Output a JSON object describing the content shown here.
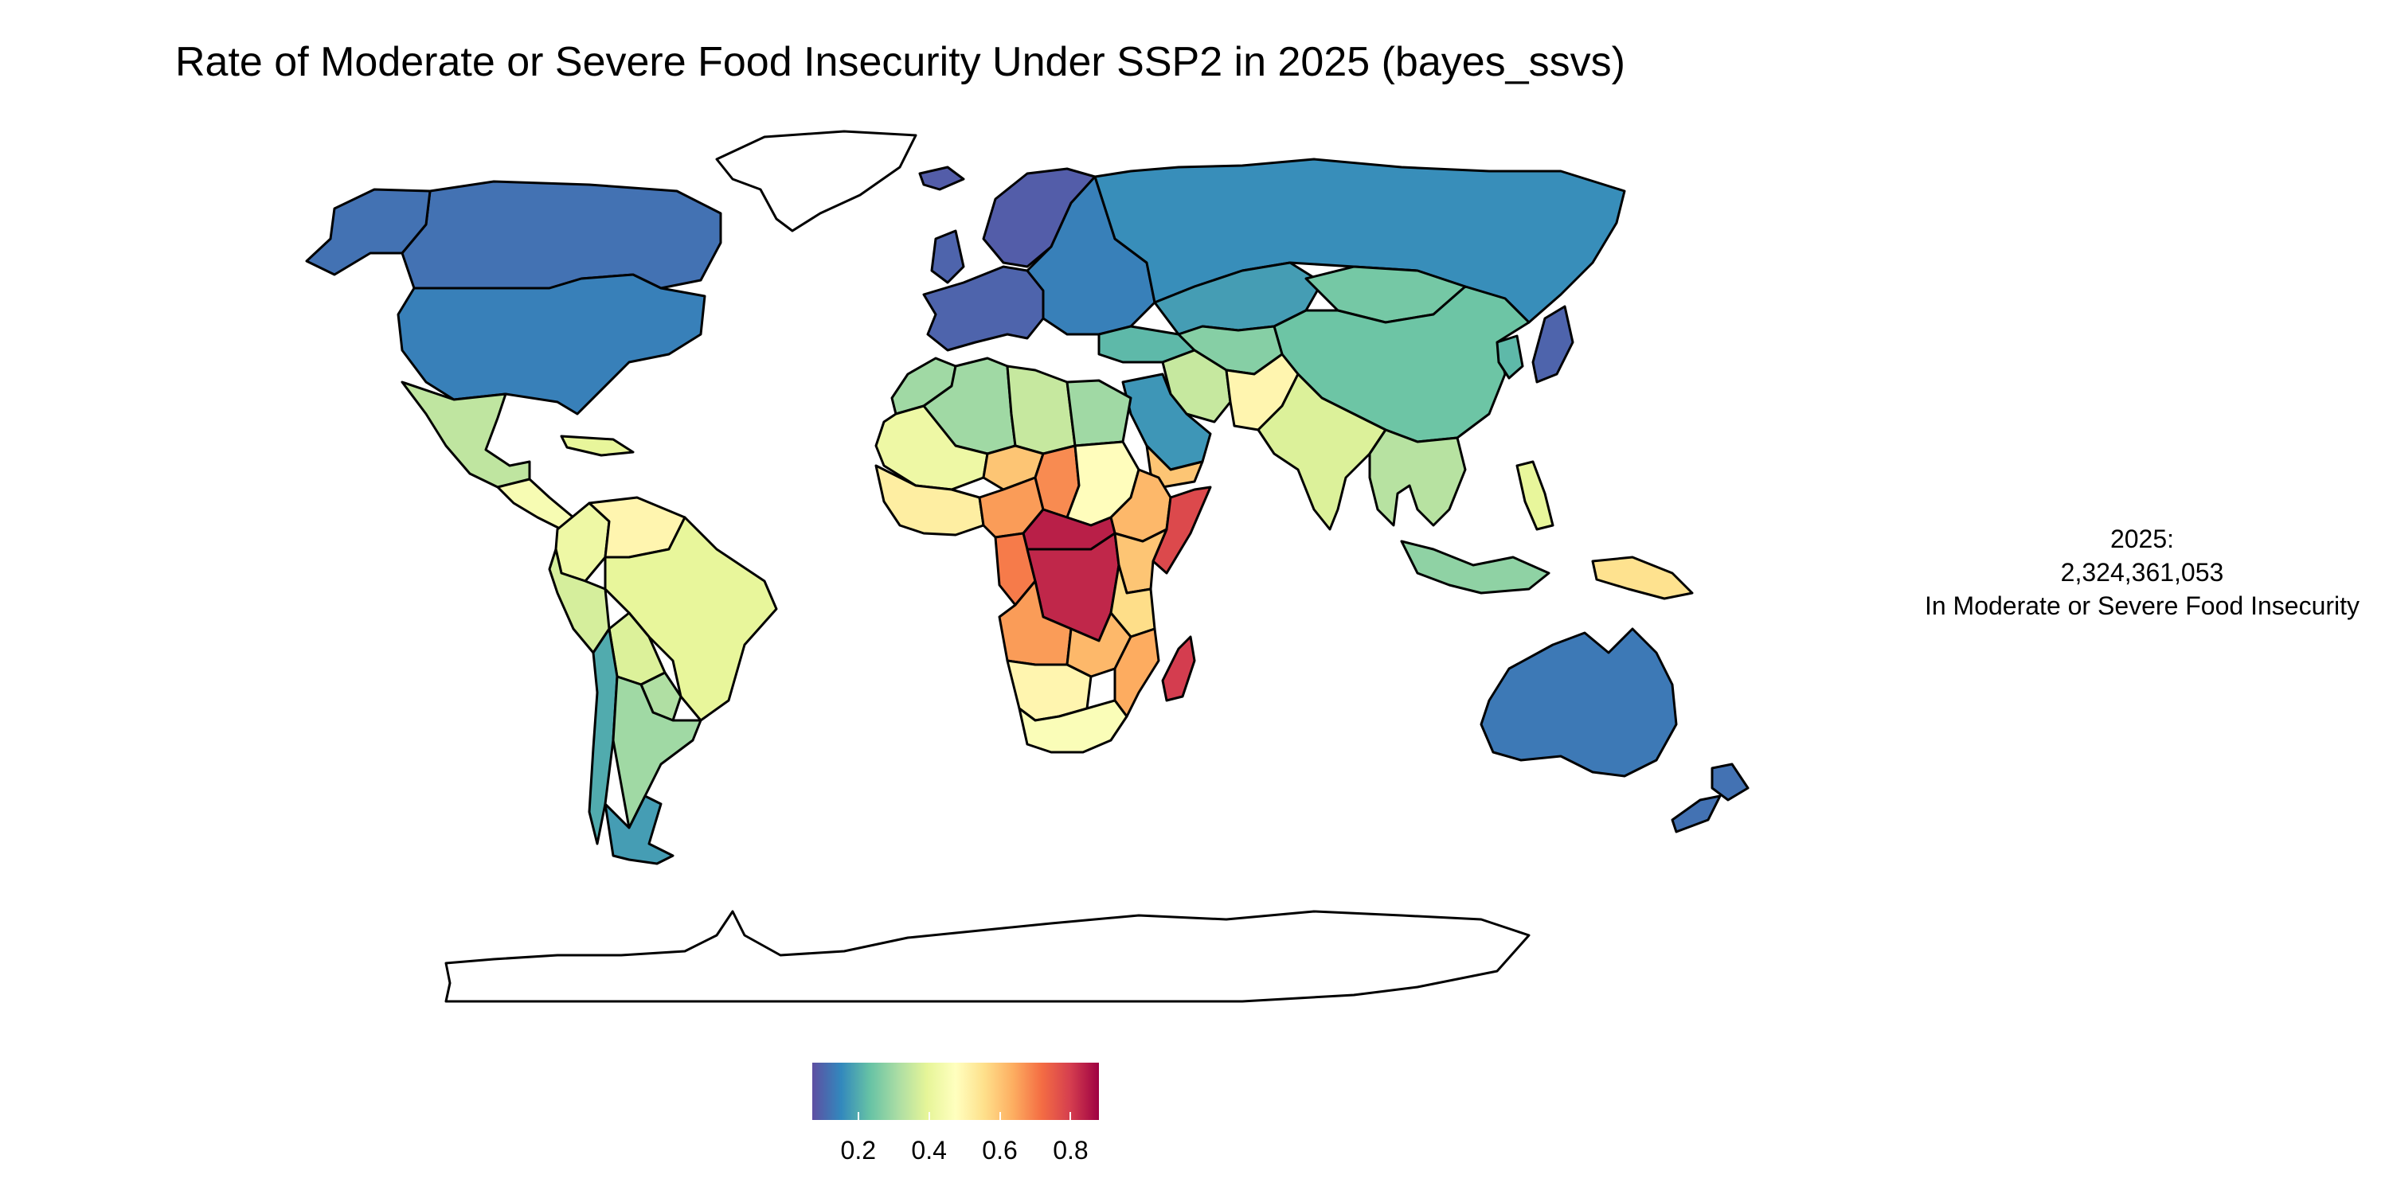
{
  "title": "Rate of Moderate or Severe Food Insecurity Under SSP2 in 2025 (bayes_ssvs)",
  "annotation": {
    "line1": "2025:",
    "line2": "2,324,361,053",
    "line3": "In Moderate or Severe Food Insecurity"
  },
  "legend": {
    "colors": [
      "#5e4fa2",
      "#3288bd",
      "#66c2a5",
      "#abdda4",
      "#e6f598",
      "#ffffbf",
      "#fee08b",
      "#fdae61",
      "#f46d43",
      "#d53e4f",
      "#9e0142"
    ],
    "range": [
      0.07,
      0.88
    ],
    "ticks": [
      {
        "value": 0.2,
        "label": "0.2"
      },
      {
        "value": 0.4,
        "label": "0.4"
      },
      {
        "value": 0.6,
        "label": "0.6"
      },
      {
        "value": 0.8,
        "label": "0.8"
      }
    ]
  },
  "regions": [
    {
      "name": "Canada",
      "rate": 0.12
    },
    {
      "name": "Greenland",
      "rate": null
    },
    {
      "name": "Alaska",
      "rate": 0.12
    },
    {
      "name": "United States",
      "rate": 0.14
    },
    {
      "name": "Mexico",
      "rate": 0.34
    },
    {
      "name": "Central America",
      "rate": 0.45
    },
    {
      "name": "Caribbean",
      "rate": 0.4
    },
    {
      "name": "Venezuela",
      "rate": 0.5
    },
    {
      "name": "Colombia",
      "rate": 0.42
    },
    {
      "name": "Brazil",
      "rate": 0.4
    },
    {
      "name": "Peru",
      "rate": 0.37
    },
    {
      "name": "Bolivia",
      "rate": 0.38
    },
    {
      "name": "Paraguay",
      "rate": 0.32
    },
    {
      "name": "Argentina",
      "rate": 0.3
    },
    {
      "name": "Chile",
      "rate": 0.2
    },
    {
      "name": "Patagonia",
      "rate": 0.18
    },
    {
      "name": "Western Europe",
      "rate": 0.1
    },
    {
      "name": "Scandinavia",
      "rate": 0.09
    },
    {
      "name": "Iceland",
      "rate": 0.09
    },
    {
      "name": "United Kingdom",
      "rate": 0.1
    },
    {
      "name": "Eastern Europe",
      "rate": 0.14
    },
    {
      "name": "Russia",
      "rate": 0.16
    },
    {
      "name": "Kazakhstan",
      "rate": 0.18
    },
    {
      "name": "Mongolia",
      "rate": 0.25
    },
    {
      "name": "China",
      "rate": 0.24
    },
    {
      "name": "Japan",
      "rate": 0.1
    },
    {
      "name": "Korea",
      "rate": 0.22
    },
    {
      "name": "Turkey",
      "rate": 0.22
    },
    {
      "name": "Central Asia",
      "rate": 0.27
    },
    {
      "name": "Iran",
      "rate": 0.35
    },
    {
      "name": "Afghanistan and Pakistan",
      "rate": 0.5
    },
    {
      "name": "Saudi Arabia",
      "rate": 0.17
    },
    {
      "name": "Yemen",
      "rate": 0.6
    },
    {
      "name": "India",
      "rate": 0.38
    },
    {
      "name": "Southeast Asia",
      "rate": 0.33
    },
    {
      "name": "Indonesia",
      "rate": 0.28
    },
    {
      "name": "Philippines",
      "rate": 0.4
    },
    {
      "name": "Papua New Guinea",
      "rate": 0.55
    },
    {
      "name": "Australia",
      "rate": 0.13
    },
    {
      "name": "New Zealand",
      "rate": 0.12
    },
    {
      "name": "Algeria",
      "rate": 0.3
    },
    {
      "name": "Morocco",
      "rate": 0.3
    },
    {
      "name": "Libya",
      "rate": 0.35
    },
    {
      "name": "Egypt",
      "rate": 0.3
    },
    {
      "name": "Mali and Mauritania",
      "rate": 0.42
    },
    {
      "name": "West Africa Coast",
      "rate": 0.52
    },
    {
      "name": "Niger",
      "rate": 0.6
    },
    {
      "name": "Nigeria",
      "rate": 0.66
    },
    {
      "name": "Chad",
      "rate": 0.68
    },
    {
      "name": "Sudan",
      "rate": 0.48
    },
    {
      "name": "Ethiopia",
      "rate": 0.62
    },
    {
      "name": "Somalia",
      "rate": 0.78
    },
    {
      "name": "Central African Republic",
      "rate": 0.84
    },
    {
      "name": "Democratic Republic of the Congo",
      "rate": 0.83
    },
    {
      "name": "Gabon and Congo",
      "rate": 0.7
    },
    {
      "name": "East Africa",
      "rate": 0.6
    },
    {
      "name": "Tanzania",
      "rate": 0.56
    },
    {
      "name": "Angola",
      "rate": 0.66
    },
    {
      "name": "Zambia",
      "rate": 0.62
    },
    {
      "name": "Mozambique",
      "rate": 0.64
    },
    {
      "name": "Namibia and Botswana",
      "rate": 0.5
    },
    {
      "name": "South Africa",
      "rate": 0.46
    },
    {
      "name": "Madagascar",
      "rate": 0.8
    },
    {
      "name": "Antarctica",
      "rate": null
    }
  ]
}
